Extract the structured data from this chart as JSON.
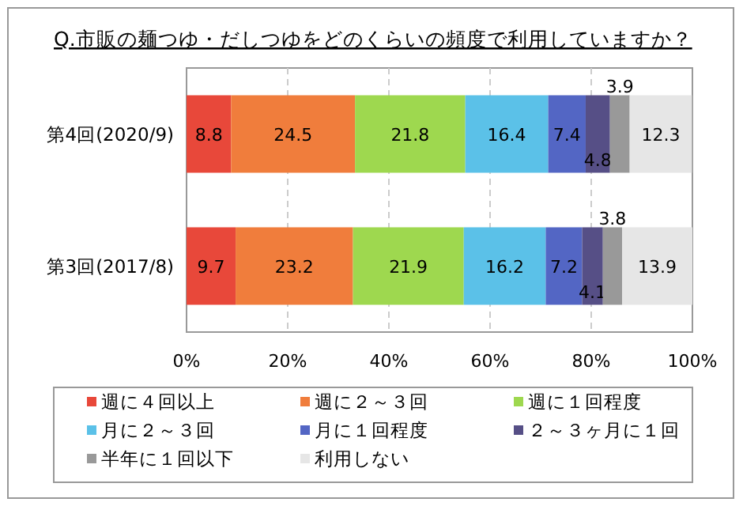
{
  "chart_data": {
    "type": "bar",
    "orientation": "horizontal",
    "stacked": true,
    "title": "Q.市販の麺つゆ・だしつゆをどのくらいの頻度で利用していますか？",
    "categories": [
      "第4回(2020/9)",
      "第3回(2017/8)"
    ],
    "series": [
      {
        "name": "週に４回以上",
        "color": "#e8483a",
        "values": [
          8.8,
          9.7
        ]
      },
      {
        "name": "週に２～３回",
        "color": "#f07d3c",
        "values": [
          24.5,
          23.2
        ]
      },
      {
        "name": "週に１回程度",
        "color": "#9ed84f",
        "values": [
          21.8,
          21.9
        ]
      },
      {
        "name": "月に２～３回",
        "color": "#5bc1e8",
        "values": [
          16.4,
          16.2
        ]
      },
      {
        "name": "月に１回程度",
        "color": "#5366c4",
        "values": [
          7.4,
          7.2
        ]
      },
      {
        "name": "２～３ヶ月に１回",
        "color": "#564f86",
        "values": [
          4.8,
          4.1
        ]
      },
      {
        "name": "半年に１回以下",
        "color": "#999999",
        "values": [
          3.9,
          3.8
        ]
      },
      {
        "name": "利用しない",
        "color": "#e6e6e6",
        "values": [
          12.3,
          13.9
        ]
      }
    ],
    "xlim": [
      0,
      100
    ],
    "xticks": [
      {
        "value": 0,
        "label": "0%"
      },
      {
        "value": 20,
        "label": "20%"
      },
      {
        "value": 40,
        "label": "40%"
      },
      {
        "value": 60,
        "label": "60%"
      },
      {
        "value": 80,
        "label": "80%"
      },
      {
        "value": 100,
        "label": "100%"
      }
    ],
    "grid": "x",
    "legend": "bottom",
    "data_labels": true
  }
}
